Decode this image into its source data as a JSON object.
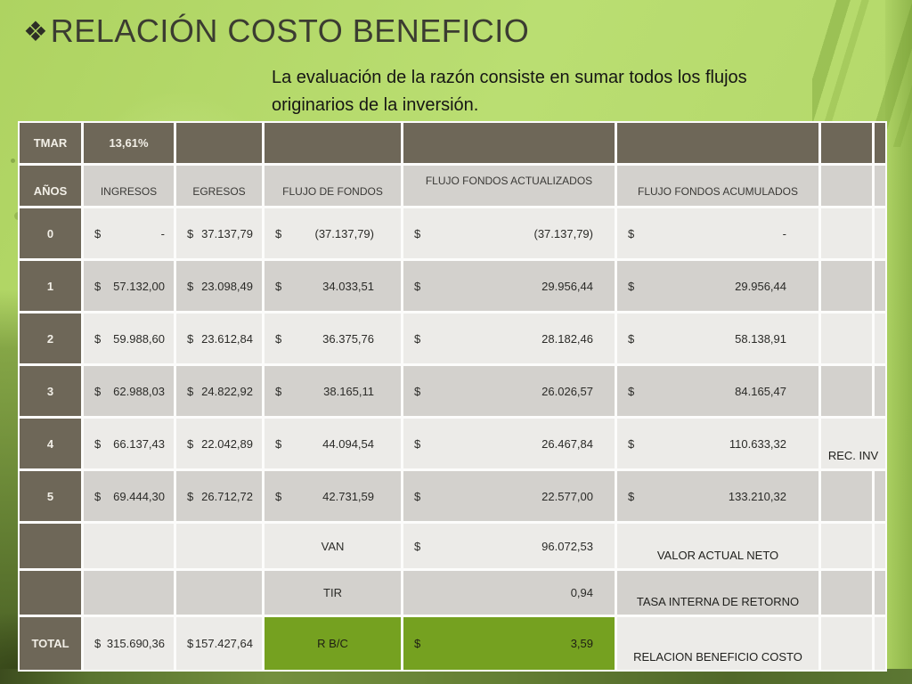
{
  "slide": {
    "bullet_icon": "❖",
    "title": "RELACIÓN COSTO BENEFICIO",
    "subtitle_line1": "La evaluación de la razón consiste en sumar todos los flujos",
    "subtitle_line2": "originarios de la inversión."
  },
  "colors": {
    "slide_background_green": "#b6da6e",
    "header_brown": "#6e6758",
    "row_light_gray": "#ecebe8",
    "row_mid_gray": "#d3d1cd",
    "accent_green_cell": "#75a120",
    "bottom_band_olive": "#5a7430"
  },
  "table": {
    "currency": "$",
    "tmar": {
      "label": "TMAR",
      "value": "13,61%"
    },
    "columns": {
      "years": "AÑOS",
      "ingresos": "INGRESOS",
      "egresos": "EGRESOS",
      "flujo": "FLUJO DE FONDOS",
      "actualizados": "FLUJO FONDOS ACTUALIZADOS",
      "acumulados": "FLUJO FONDOS ACUMULADOS"
    },
    "rows": [
      {
        "year": "0",
        "ingresos": "-",
        "egresos": "37.137,79",
        "flujo": "(37.137,79)",
        "actualizados": "(37.137,79)",
        "acumulados": "-"
      },
      {
        "year": "1",
        "ingresos": "57.132,00",
        "egresos": "23.098,49",
        "flujo": "34.033,51",
        "actualizados": "29.956,44",
        "acumulados": "29.956,44"
      },
      {
        "year": "2",
        "ingresos": "59.988,60",
        "egresos": "23.612,84",
        "flujo": "36.375,76",
        "actualizados": "28.182,46",
        "acumulados": "58.138,91"
      },
      {
        "year": "3",
        "ingresos": "62.988,03",
        "egresos": "24.822,92",
        "flujo": "38.165,11",
        "actualizados": "26.026,57",
        "acumulados": "84.165,47"
      },
      {
        "year": "4",
        "ingresos": "66.137,43",
        "egresos": "22.042,89",
        "flujo": "44.094,54",
        "actualizados": "26.467,84",
        "acumulados": "110.633,32"
      },
      {
        "year": "5",
        "ingresos": "69.444,30",
        "egresos": "26.712,72",
        "flujo": "42.731,59",
        "actualizados": "22.577,00",
        "acumulados": "133.210,32"
      }
    ],
    "rec_inv_label": "REC. INV",
    "van": {
      "label": "VAN",
      "value": "96.072,53",
      "note": "VALOR ACTUAL NETO"
    },
    "tir": {
      "label": "TIR",
      "value": "0,94",
      "note": "TASA INTERNA DE RETORNO"
    },
    "total": {
      "label": "TOTAL",
      "ingresos": "315.690,36",
      "egresos": "157.427,64",
      "rbc_label": "R B/C",
      "rbc_value": "3,59",
      "note": "RELACION BENEFICIO COSTO"
    }
  }
}
